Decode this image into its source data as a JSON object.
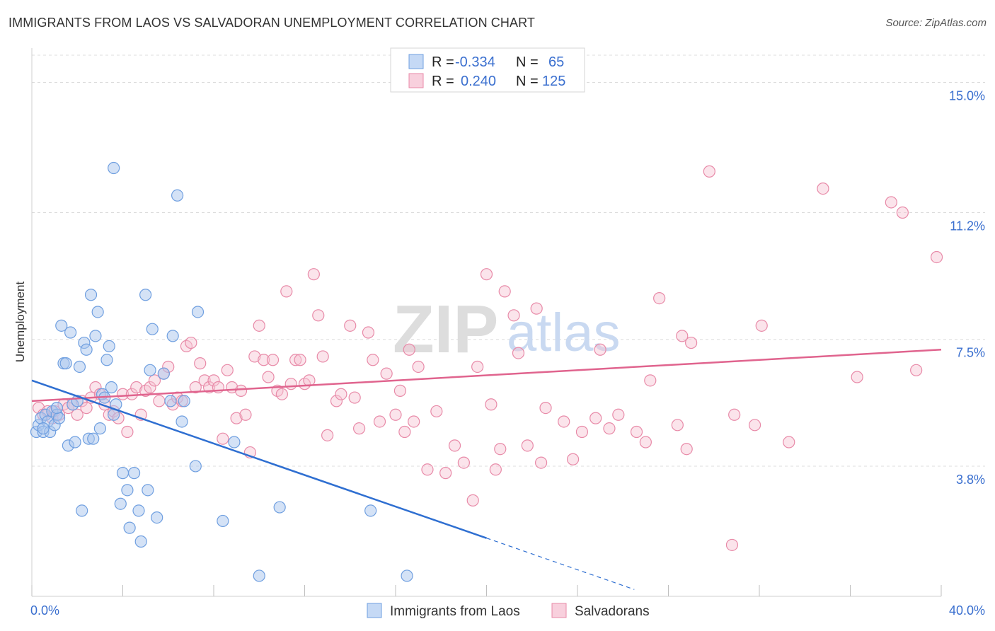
{
  "header": {
    "title": "IMMIGRANTS FROM LAOS VS SALVADORAN UNEMPLOYMENT CORRELATION CHART",
    "source": "Source: ZipAtlas.com"
  },
  "watermark": {
    "zip": "ZIP",
    "atlas": "atlas"
  },
  "legend_top": {
    "rows": [
      {
        "r_label": "R =",
        "r_value": "-0.334",
        "n_label": "N =",
        "n_value": "65",
        "color": "#6f9fe0"
      },
      {
        "r_label": "R =",
        "r_value": "0.240",
        "n_label": "N =",
        "n_value": "125",
        "color": "#e88aa8"
      }
    ]
  },
  "legend_bottom": {
    "items": [
      {
        "label": "Immigrants from Laos",
        "color": "#6f9fe0"
      },
      {
        "label": "Salvadorans",
        "color": "#e88aa8"
      }
    ]
  },
  "colors": {
    "blue_fill": "#a9c6ee",
    "blue_stroke": "#6f9fe0",
    "blue_line": "#2f6fd1",
    "pink_fill": "#f6c3d3",
    "pink_stroke": "#e88aa8",
    "pink_line": "#e0648e",
    "grid": "#dcdcdc",
    "tick_text": "#3a6fcf"
  },
  "chart_data": {
    "type": "scatter",
    "title": "IMMIGRANTS FROM LAOS VS SALVADORAN UNEMPLOYMENT CORRELATION CHART",
    "xlabel": "",
    "ylabel": "Unemployment",
    "xlim": [
      0,
      40
    ],
    "ylim": [
      0,
      16
    ],
    "x_tick_labels": [
      "0.0%",
      "40.0%"
    ],
    "y_ticks": [
      {
        "value": 3.8,
        "label": "3.8%"
      },
      {
        "value": 7.5,
        "label": "7.5%"
      },
      {
        "value": 11.2,
        "label": "11.2%"
      },
      {
        "value": 15.0,
        "label": "15.0%"
      }
    ],
    "grid": "horizontal dashed",
    "series": [
      {
        "name": "Immigrants from Laos",
        "r": -0.334,
        "n": 65,
        "trend": {
          "x0": 0,
          "y0": 6.3,
          "x1": 20,
          "y1": 1.7,
          "dash_to_x": 26.5,
          "dash_to_y": 0.2
        },
        "points": [
          [
            0.2,
            4.8
          ],
          [
            0.3,
            5.0
          ],
          [
            0.4,
            5.2
          ],
          [
            0.5,
            4.8
          ],
          [
            0.6,
            5.3
          ],
          [
            0.7,
            5.1
          ],
          [
            0.8,
            4.8
          ],
          [
            0.9,
            5.4
          ],
          [
            1.0,
            5.0
          ],
          [
            1.1,
            5.3
          ],
          [
            1.2,
            5.2
          ],
          [
            1.3,
            7.9
          ],
          [
            1.4,
            6.8
          ],
          [
            1.5,
            6.8
          ],
          [
            1.6,
            4.4
          ],
          [
            1.7,
            7.7
          ],
          [
            1.8,
            5.6
          ],
          [
            2.0,
            5.7
          ],
          [
            2.1,
            6.7
          ],
          [
            2.2,
            2.5
          ],
          [
            2.3,
            7.4
          ],
          [
            2.4,
            7.2
          ],
          [
            2.5,
            4.6
          ],
          [
            2.6,
            8.8
          ],
          [
            2.7,
            4.6
          ],
          [
            2.8,
            7.6
          ],
          [
            2.9,
            8.3
          ],
          [
            3.0,
            4.9
          ],
          [
            3.1,
            5.9
          ],
          [
            3.2,
            5.8
          ],
          [
            3.3,
            6.9
          ],
          [
            3.4,
            7.3
          ],
          [
            3.5,
            6.1
          ],
          [
            3.6,
            5.3
          ],
          [
            3.7,
            5.6
          ],
          [
            3.6,
            12.5
          ],
          [
            3.9,
            2.7
          ],
          [
            4.0,
            3.6
          ],
          [
            4.2,
            3.1
          ],
          [
            4.3,
            2.0
          ],
          [
            4.5,
            3.6
          ],
          [
            4.7,
            2.5
          ],
          [
            4.8,
            1.6
          ],
          [
            5.0,
            8.8
          ],
          [
            5.1,
            3.1
          ],
          [
            5.2,
            6.6
          ],
          [
            5.3,
            7.8
          ],
          [
            5.5,
            2.3
          ],
          [
            5.8,
            6.5
          ],
          [
            6.1,
            5.7
          ],
          [
            6.2,
            7.6
          ],
          [
            6.4,
            11.7
          ],
          [
            6.6,
            5.1
          ],
          [
            6.7,
            5.7
          ],
          [
            7.2,
            3.8
          ],
          [
            7.3,
            8.3
          ],
          [
            8.4,
            2.2
          ],
          [
            8.9,
            4.5
          ],
          [
            10.0,
            0.6
          ],
          [
            10.9,
            2.6
          ],
          [
            14.9,
            2.5
          ],
          [
            16.5,
            0.6
          ],
          [
            0.5,
            4.9
          ],
          [
            1.1,
            5.5
          ],
          [
            1.9,
            4.5
          ]
        ]
      },
      {
        "name": "Salvadorans",
        "r": 0.24,
        "n": 125,
        "trend": {
          "x0": 0,
          "y0": 5.7,
          "x1": 40,
          "y1": 7.2
        },
        "points": [
          [
            0.3,
            5.5
          ],
          [
            0.5,
            5.3
          ],
          [
            0.7,
            5.4
          ],
          [
            0.9,
            5.2
          ],
          [
            1.0,
            5.4
          ],
          [
            1.2,
            5.3
          ],
          [
            1.4,
            5.6
          ],
          [
            1.6,
            5.5
          ],
          [
            1.8,
            5.6
          ],
          [
            2.0,
            5.3
          ],
          [
            2.2,
            5.7
          ],
          [
            2.4,
            5.5
          ],
          [
            2.6,
            5.8
          ],
          [
            2.8,
            6.1
          ],
          [
            3.0,
            5.9
          ],
          [
            3.2,
            5.6
          ],
          [
            3.4,
            5.3
          ],
          [
            3.6,
            5.4
          ],
          [
            3.8,
            5.2
          ],
          [
            4.0,
            5.9
          ],
          [
            4.2,
            4.8
          ],
          [
            4.4,
            5.9
          ],
          [
            4.6,
            6.1
          ],
          [
            4.8,
            5.3
          ],
          [
            5.0,
            6.0
          ],
          [
            5.2,
            6.1
          ],
          [
            5.4,
            6.3
          ],
          [
            5.6,
            5.7
          ],
          [
            5.8,
            6.5
          ],
          [
            6.0,
            6.7
          ],
          [
            6.2,
            5.6
          ],
          [
            6.4,
            5.8
          ],
          [
            6.6,
            5.7
          ],
          [
            6.8,
            7.3
          ],
          [
            7.0,
            7.4
          ],
          [
            7.2,
            6.1
          ],
          [
            7.4,
            6.8
          ],
          [
            7.6,
            6.3
          ],
          [
            7.8,
            6.1
          ],
          [
            8.0,
            6.3
          ],
          [
            8.2,
            6.1
          ],
          [
            8.4,
            4.6
          ],
          [
            8.6,
            6.6
          ],
          [
            8.8,
            6.1
          ],
          [
            9.0,
            5.2
          ],
          [
            9.2,
            6.0
          ],
          [
            9.4,
            5.3
          ],
          [
            9.6,
            4.2
          ],
          [
            9.8,
            7.0
          ],
          [
            10.0,
            7.9
          ],
          [
            10.2,
            6.9
          ],
          [
            10.4,
            6.4
          ],
          [
            10.6,
            6.9
          ],
          [
            10.8,
            6.0
          ],
          [
            11.0,
            5.9
          ],
          [
            11.2,
            8.9
          ],
          [
            11.4,
            6.2
          ],
          [
            11.6,
            6.9
          ],
          [
            11.8,
            6.9
          ],
          [
            12.0,
            6.2
          ],
          [
            12.2,
            6.3
          ],
          [
            12.4,
            9.4
          ],
          [
            12.6,
            8.2
          ],
          [
            12.8,
            7.0
          ],
          [
            13.0,
            4.7
          ],
          [
            13.4,
            5.7
          ],
          [
            13.6,
            5.9
          ],
          [
            14.0,
            7.9
          ],
          [
            14.2,
            5.8
          ],
          [
            14.4,
            4.9
          ],
          [
            14.8,
            7.7
          ],
          [
            15.0,
            6.9
          ],
          [
            15.3,
            5.1
          ],
          [
            15.6,
            6.5
          ],
          [
            16.0,
            5.3
          ],
          [
            16.2,
            6.0
          ],
          [
            16.4,
            4.8
          ],
          [
            16.6,
            7.2
          ],
          [
            16.8,
            5.1
          ],
          [
            17.0,
            6.7
          ],
          [
            17.4,
            3.7
          ],
          [
            17.8,
            5.4
          ],
          [
            18.2,
            3.6
          ],
          [
            18.6,
            4.4
          ],
          [
            19.0,
            3.9
          ],
          [
            19.4,
            2.8
          ],
          [
            19.6,
            6.7
          ],
          [
            20.0,
            9.4
          ],
          [
            20.2,
            5.6
          ],
          [
            20.4,
            3.7
          ],
          [
            20.6,
            4.3
          ],
          [
            20.8,
            8.9
          ],
          [
            21.2,
            8.2
          ],
          [
            21.4,
            7.1
          ],
          [
            21.8,
            4.4
          ],
          [
            22.2,
            8.4
          ],
          [
            22.4,
            3.9
          ],
          [
            22.6,
            5.5
          ],
          [
            23.4,
            5.1
          ],
          [
            23.8,
            4.0
          ],
          [
            24.2,
            4.8
          ],
          [
            24.8,
            5.2
          ],
          [
            25.0,
            7.2
          ],
          [
            25.4,
            4.9
          ],
          [
            25.8,
            5.3
          ],
          [
            26.6,
            4.8
          ],
          [
            27.0,
            4.5
          ],
          [
            27.2,
            6.3
          ],
          [
            27.6,
            8.7
          ],
          [
            28.4,
            5.0
          ],
          [
            28.6,
            7.6
          ],
          [
            28.8,
            4.3
          ],
          [
            29.0,
            7.4
          ],
          [
            29.8,
            12.4
          ],
          [
            30.8,
            1.5
          ],
          [
            30.9,
            5.3
          ],
          [
            31.8,
            5.0
          ],
          [
            32.1,
            7.9
          ],
          [
            33.3,
            4.5
          ],
          [
            34.8,
            11.9
          ],
          [
            36.3,
            6.4
          ],
          [
            37.8,
            11.5
          ],
          [
            38.3,
            11.2
          ],
          [
            38.9,
            6.6
          ],
          [
            39.8,
            9.9
          ]
        ]
      }
    ]
  }
}
